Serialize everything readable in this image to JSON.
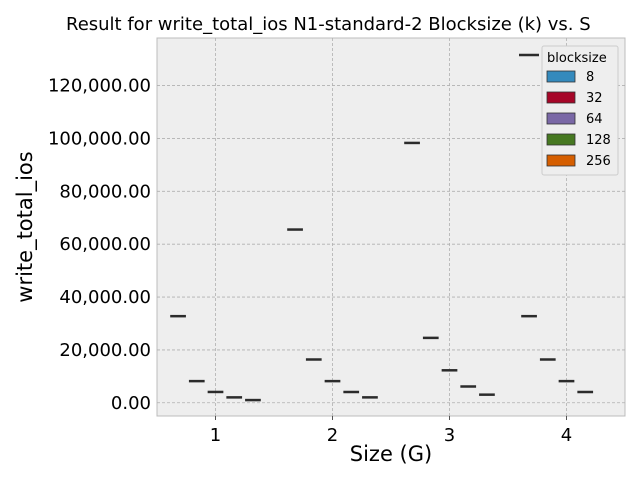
{
  "chart_data": {
    "type": "box",
    "title": "Result for write_total_ios N1-standard-2 Blocksize (k) vs. S",
    "xlabel": "Size (G)",
    "ylabel": "write_total_ios",
    "categories": [
      "1",
      "2",
      "3",
      "4"
    ],
    "yticks": [
      "0.00",
      "20,000.00",
      "40,000.00",
      "60,000.00",
      "80,000.00",
      "100,000.00",
      "120,000.00"
    ],
    "ylim": [
      -5000,
      138000
    ],
    "legend": {
      "title": "blocksize",
      "placement": "top-right"
    },
    "series": [
      {
        "name": "8",
        "color": "#348ABD",
        "values": [
          32768,
          65536,
          98304,
          32768
        ]
      },
      {
        "name": "32",
        "color": "#A60628",
        "values": [
          8192,
          16384,
          24576,
          16384
        ]
      },
      {
        "name": "64",
        "color": "#7A68A6",
        "values": [
          4096,
          8192,
          12288,
          8192
        ]
      },
      {
        "name": "128",
        "color": "#467821",
        "values": [
          2048,
          4096,
          6144,
          4096
        ]
      },
      {
        "name": "256",
        "color": "#D55E00",
        "values": [
          1024,
          2048,
          3072,
          null
        ]
      }
    ]
  }
}
